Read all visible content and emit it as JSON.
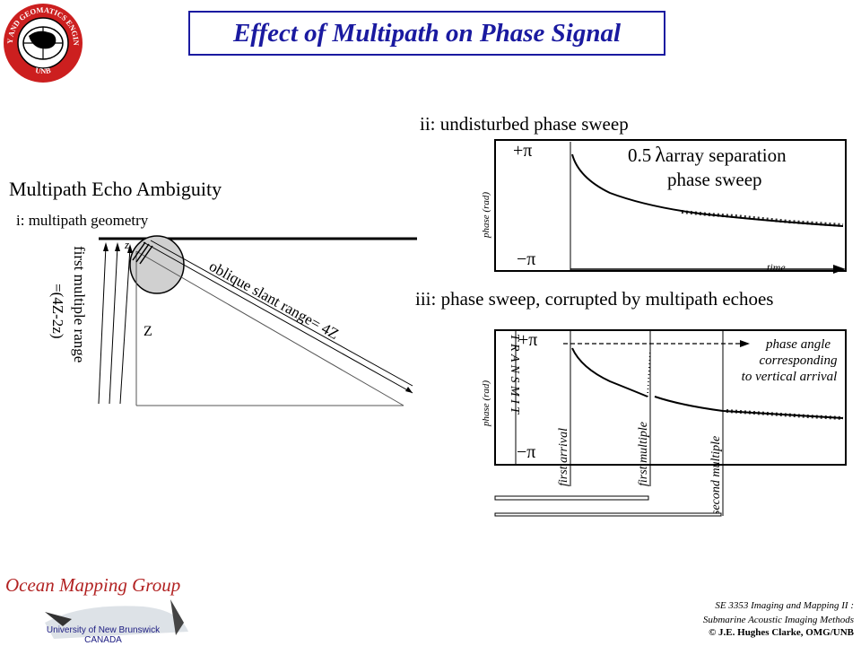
{
  "logo": {
    "ring_text_top": "GEODESY AND GEOMATICS ENGINEERING",
    "ring_text_bottom": "UNB"
  },
  "title": "Effect of Multipath on Phase Signal",
  "left": {
    "heading": "Multipath Echo Ambiguity",
    "subheading": "i: multipath geometry",
    "first_multiple_line1": "first multiple range",
    "first_multiple_line2": "=(4Z-2z)",
    "oblique_label": "oblique slant range= 4Z",
    "z_upper": "Z",
    "z_lower": "z"
  },
  "panel_ii": {
    "label": "ii: undisturbed phase sweep",
    "plus_pi": "+π",
    "minus_pi": "−π",
    "ylabel": "phase (rad)",
    "xlabel": "time",
    "annotation_pre": "0.5",
    "annotation_lambda": "λ",
    "annotation_post": "array separation",
    "annotation_line2": "phase sweep"
  },
  "panel_iii": {
    "label": "iii:  phase sweep, corrupted by multipath echoes",
    "plus_pi": "+π",
    "minus_pi": "−π",
    "ylabel": "phase (rad)",
    "transmit": "T R A N S M I T",
    "angle_line1": "phase angle",
    "angle_line2": "corresponding",
    "angle_line3": "to vertical arrival",
    "first_arrival": "first arrival",
    "first_multiple": "first multiple",
    "second_multiple": "second multiple"
  },
  "omg": {
    "title": "Ocean Mapping Group",
    "line1": "University of New Brunswick",
    "line2": "CANADA"
  },
  "footer": {
    "line1": "SE 3353 Imaging and Mapping II :",
    "line2": "Submarine Acoustic Imaging Methods",
    "line3": "© J.E. Hughes Clarke, OMG/UNB"
  },
  "colors": {
    "title_blue": "#1a1aa0",
    "omg_red": "#b22222",
    "logo_red": "#cc1f1f",
    "footprint_gray": "#d0d0d0"
  }
}
